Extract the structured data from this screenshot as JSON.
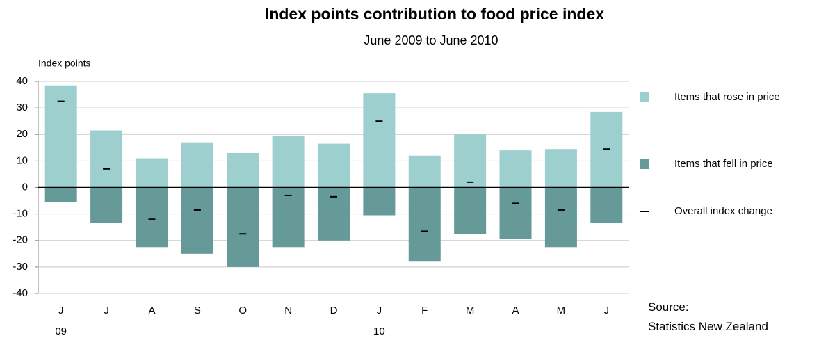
{
  "chart_data": {
    "type": "bar",
    "title": "Index points contribution to food price index",
    "subtitle": "June 2009 to June 2010",
    "y_label": "Index points",
    "categories": [
      "J",
      "J",
      "A",
      "S",
      "O",
      "N",
      "D",
      "J",
      "F",
      "M",
      "A",
      "M",
      "J"
    ],
    "category_years": [
      "09",
      null,
      null,
      null,
      null,
      null,
      null,
      "10",
      null,
      null,
      null,
      null,
      null
    ],
    "series": [
      {
        "name": "Items that rose in price",
        "color": "#9ecfcf",
        "style": "bar",
        "values": [
          38.5,
          21.5,
          11,
          17,
          13,
          19.5,
          16.5,
          35.5,
          12,
          20,
          14,
          14.5,
          28.5
        ]
      },
      {
        "name": "Items that fell in price",
        "color": "#669a99",
        "style": "bar",
        "values": [
          -5.5,
          -13.5,
          -22.5,
          -25,
          -30,
          -22.5,
          -20,
          -10.5,
          -28,
          -17.5,
          -19.5,
          -22.5,
          -13.5
        ]
      },
      {
        "name": "Overall index change",
        "color": "#000000",
        "style": "dash",
        "values": [
          32.5,
          7,
          -12,
          -8.5,
          -17.5,
          -3,
          -3.5,
          25,
          -16.5,
          2,
          -6,
          -8.5,
          14.5
        ]
      }
    ],
    "ylim": [
      -40,
      40
    ],
    "yticks": [
      -40,
      -30,
      -20,
      -10,
      0,
      10,
      20,
      30,
      40
    ],
    "grid": true,
    "source_label": "Source:",
    "source": "Statistics New Zealand"
  }
}
